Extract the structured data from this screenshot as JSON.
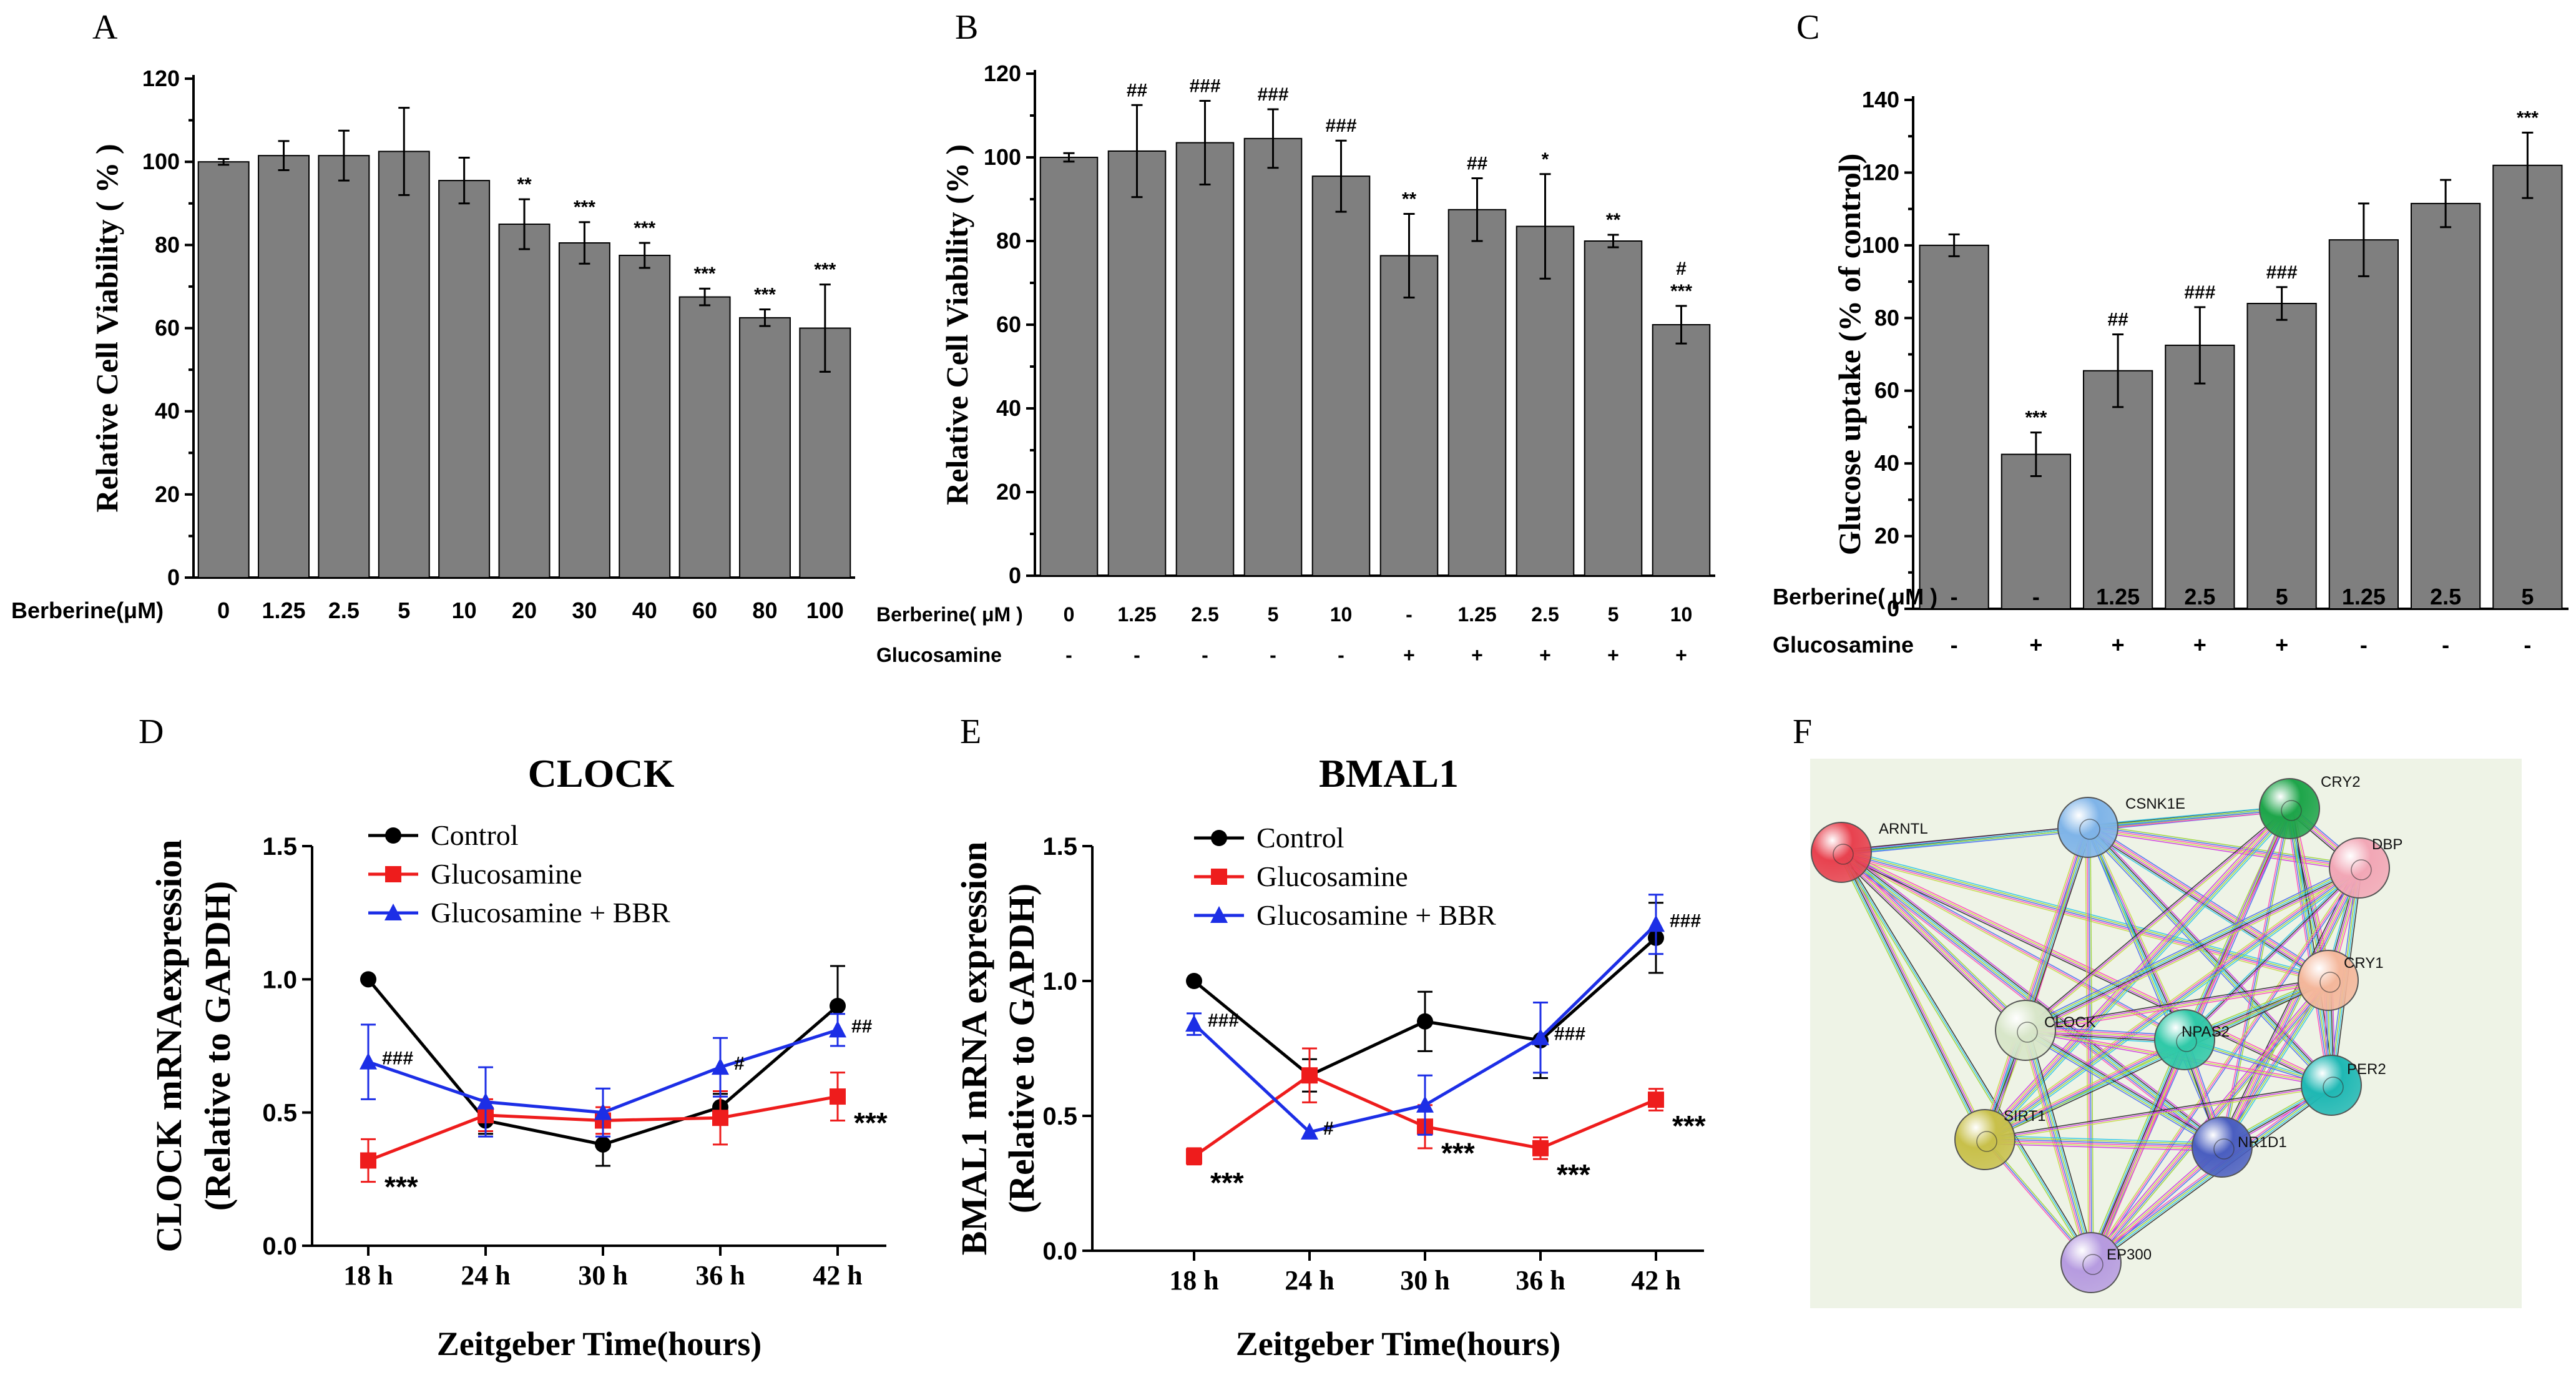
{
  "chart_data": [
    {
      "id": "A",
      "type": "bar",
      "panel_letter": "A",
      "ylabel": "Relative Cell Viability ( % )",
      "ylim": [
        0,
        120
      ],
      "yticks": [
        "0",
        "20",
        "40",
        "60",
        "80",
        "100",
        "120"
      ],
      "row_label": "Berberine(μM)",
      "categories": [
        "0",
        "1.25",
        "2.5",
        "5",
        "10",
        "20",
        "30",
        "40",
        "60",
        "80",
        "100"
      ],
      "values": [
        100,
        101.5,
        101.5,
        102.5,
        95.5,
        85,
        80.5,
        77.5,
        67.5,
        62.5,
        60
      ],
      "errors": [
        0.7,
        3.5,
        6,
        10.5,
        5.5,
        6,
        5,
        3,
        2,
        2,
        10.5
      ],
      "sig": [
        "",
        "",
        "",
        "",
        "",
        "**",
        "***",
        "***",
        "***",
        "***",
        "***"
      ]
    },
    {
      "id": "B",
      "type": "bar",
      "panel_letter": "B",
      "ylabel": "Relative Cell Viability (% )",
      "ylim": [
        0,
        120
      ],
      "yticks": [
        "0",
        "20",
        "40",
        "60",
        "80",
        "100",
        "120"
      ],
      "rows": [
        {
          "label": "Berberine( μM )",
          "values": [
            "0",
            "1.25",
            "2.5",
            "5",
            "10",
            "-",
            "1.25",
            "2.5",
            "5",
            "10"
          ]
        },
        {
          "label": "Glucosamine",
          "values": [
            "-",
            "-",
            "-",
            "-",
            "-",
            "+",
            "+",
            "+",
            "+",
            "+"
          ]
        }
      ],
      "values": [
        100,
        101.5,
        103.5,
        104.5,
        95.5,
        76.5,
        87.5,
        83.5,
        80,
        60
      ],
      "errors": [
        1,
        11,
        10,
        7,
        8.5,
        10,
        7.5,
        12.5,
        1.5,
        4.5
      ],
      "sig": [
        "",
        "##",
        "###",
        "###",
        "###",
        "**",
        "##",
        "*",
        "**",
        "***"
      ],
      "sig_top": [
        "",
        "",
        "",
        "",
        "",
        "",
        "",
        "",
        "",
        "#"
      ]
    },
    {
      "id": "C",
      "type": "bar",
      "panel_letter": "C",
      "ylabel": "Glucose uptake (% of control)",
      "ylim": [
        0,
        140
      ],
      "yticks": [
        "0",
        "20",
        "40",
        "60",
        "80",
        "100",
        "120",
        "140"
      ],
      "rows": [
        {
          "label": "Berberine( μM )",
          "values": [
            "-",
            "-",
            "1.25",
            "2.5",
            "5",
            "1.25",
            "2.5",
            "5"
          ]
        },
        {
          "label": "Glucosamine",
          "values": [
            "-",
            "+",
            "+",
            "+",
            "+",
            "-",
            "-",
            "-"
          ]
        }
      ],
      "values": [
        100,
        42.5,
        65.5,
        72.5,
        84,
        101.5,
        111.5,
        122
      ],
      "errors": [
        3,
        6,
        10,
        10.5,
        4.5,
        10,
        6.5,
        9
      ],
      "sig": [
        "",
        "***",
        "##",
        "###",
        "###",
        "",
        "",
        "***"
      ]
    },
    {
      "id": "D",
      "type": "line",
      "panel_letter": "D",
      "title": "CLOCK",
      "ylabel_line1": "CLOCK mRNAexpression",
      "ylabel_line2": "(Relative to GAPDH)",
      "xlabel": "Zeitgeber Time(hours)",
      "categories": [
        "18 h",
        "24 h",
        "30 h",
        "36 h",
        "42 h"
      ],
      "ylim": [
        0,
        1.5
      ],
      "yticks": [
        "0.0",
        "0.5",
        "1.0",
        "1.5"
      ],
      "series": [
        {
          "name": "Control",
          "color": "#000000",
          "marker": "circle",
          "values": [
            1.0,
            0.47,
            0.38,
            0.52,
            0.9
          ],
          "errors": [
            0,
            0.05,
            0.08,
            0.05,
            0.15
          ]
        },
        {
          "name": "Glucosamine",
          "color": "#ee1c1c",
          "marker": "square",
          "values": [
            0.32,
            0.49,
            0.47,
            0.48,
            0.56
          ],
          "errors": [
            0.08,
            0.06,
            0.05,
            0.1,
            0.09
          ]
        },
        {
          "name": "Glucosamine + BBR",
          "color": "#1c2ee6",
          "marker": "triangle",
          "values": [
            0.69,
            0.54,
            0.5,
            0.67,
            0.81
          ],
          "errors": [
            0.14,
            0.13,
            0.09,
            0.11,
            0.06
          ]
        }
      ],
      "annotations": [
        {
          "index": 0,
          "series": 2,
          "text": "###"
        },
        {
          "index": 3,
          "series": 2,
          "text": "#"
        },
        {
          "index": 4,
          "series": 2,
          "text": "##"
        },
        {
          "index": 0,
          "series": 1,
          "text": "***"
        },
        {
          "index": 4,
          "series": 1,
          "text": "***"
        }
      ]
    },
    {
      "id": "E",
      "type": "line",
      "panel_letter": "E",
      "title": "BMAL1",
      "ylabel_line1": "BMAL1 mRNA expression",
      "ylabel_line2": "(Relative to GAPDH)",
      "xlabel": "Zeitgeber Time(hours)",
      "categories": [
        "18 h",
        "24 h",
        "30 h",
        "36 h",
        "42 h"
      ],
      "ylim": [
        0,
        1.5
      ],
      "yticks": [
        "0.0",
        "0.5",
        "1.0",
        "1.5"
      ],
      "series": [
        {
          "name": "Control",
          "color": "#000000",
          "marker": "circle",
          "values": [
            1.0,
            0.65,
            0.85,
            0.78,
            1.16
          ],
          "errors": [
            0,
            0.06,
            0.11,
            0.14,
            0.13
          ]
        },
        {
          "name": "Glucosamine",
          "color": "#ee1c1c",
          "marker": "square",
          "values": [
            0.35,
            0.65,
            0.46,
            0.38,
            0.56
          ],
          "errors": [
            0.03,
            0.1,
            0.08,
            0.04,
            0.04
          ]
        },
        {
          "name": "Glucosamine + BBR",
          "color": "#1c2ee6",
          "marker": "triangle",
          "values": [
            0.84,
            0.44,
            0.54,
            0.79,
            1.21
          ],
          "errors": [
            0.04,
            0,
            0.11,
            0.13,
            0.11
          ]
        }
      ],
      "annotations": [
        {
          "index": 0,
          "series": 2,
          "text": "###"
        },
        {
          "index": 1,
          "series": 2,
          "text": "#"
        },
        {
          "index": 3,
          "series": 2,
          "text": "###"
        },
        {
          "index": 4,
          "series": 2,
          "text": "###"
        },
        {
          "index": 0,
          "series": 1,
          "text": "***"
        },
        {
          "index": 2,
          "series": 1,
          "text": "***"
        },
        {
          "index": 3,
          "series": 1,
          "text": "***"
        },
        {
          "index": 4,
          "series": 1,
          "text": "***"
        }
      ]
    }
  ],
  "network": {
    "panel_letter": "F",
    "nodes": [
      {
        "label": "ARNTL",
        "color": "#e8424f"
      },
      {
        "label": "CSNK1E",
        "color": "#7fb4e8"
      },
      {
        "label": "CRY2",
        "color": "#1ea54a"
      },
      {
        "label": "DBP",
        "color": "#f2a7b6"
      },
      {
        "label": "CRY1",
        "color": "#f4b79b"
      },
      {
        "label": "CLOCK",
        "color": "#d8e6c9"
      },
      {
        "label": "NPAS2",
        "color": "#2fc9a8"
      },
      {
        "label": "PER2",
        "color": "#1fb8b4"
      },
      {
        "label": "SIRT1",
        "color": "#c8c04a"
      },
      {
        "label": "NR1D1",
        "color": "#4a5ec0"
      },
      {
        "label": "EP300",
        "color": "#b69be0"
      }
    ],
    "edge_colors": [
      "#d23be0",
      "#2a2a2a",
      "#2fc7e8",
      "#9bd43a",
      "#4a6ef0",
      "#ff4db8",
      "#c8d84a"
    ]
  }
}
